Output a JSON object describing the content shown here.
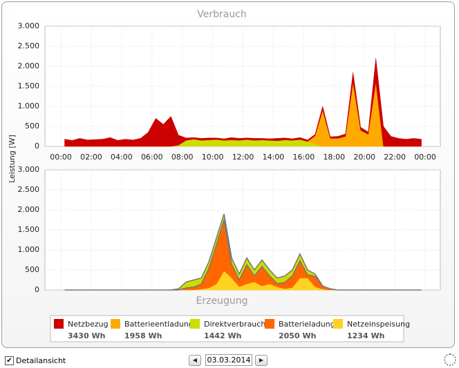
{
  "chart_data": [
    {
      "type": "area",
      "title": "Verbrauch",
      "ylabel": "Leistung [W]",
      "x": [
        0.25,
        0.75,
        1.25,
        1.75,
        2.25,
        2.75,
        3.25,
        3.75,
        4.25,
        4.75,
        5.25,
        5.75,
        6.25,
        6.75,
        7.25,
        7.75,
        8.25,
        8.75,
        9.25,
        9.75,
        10.25,
        10.75,
        11.25,
        11.75,
        12.25,
        12.75,
        13.25,
        13.75,
        14.25,
        14.75,
        15.25,
        15.75,
        16.25,
        16.75,
        17.25,
        17.75,
        18.25,
        18.75,
        19.25,
        19.75,
        20.25,
        20.75,
        21.25,
        21.75,
        22.25,
        22.75,
        23.25,
        23.75
      ],
      "xlim": [
        -1.05,
        25.0
      ],
      "xticks": [
        {
          "value": 0,
          "label": "00:00"
        },
        {
          "value": 2,
          "label": "02:00"
        },
        {
          "value": 4,
          "label": "04:00"
        },
        {
          "value": 6,
          "label": "06:00"
        },
        {
          "value": 8,
          "label": "08:00"
        },
        {
          "value": 10,
          "label": "10:00"
        },
        {
          "value": 12,
          "label": "12:00"
        },
        {
          "value": 14,
          "label": "14:00"
        },
        {
          "value": 16,
          "label": "16:00"
        },
        {
          "value": 18,
          "label": "18:00"
        },
        {
          "value": 20,
          "label": "20:00"
        },
        {
          "value": 22,
          "label": "22:00"
        },
        {
          "value": 24,
          "label": "00:00"
        }
      ],
      "ylim": [
        0,
        3000
      ],
      "yticks": [
        0,
        500,
        {
          "value": 1000,
          "label": "1.000"
        },
        {
          "value": 1500,
          "label": "1.500"
        },
        {
          "value": 2000,
          "label": "2.000"
        },
        {
          "value": 2500,
          "label": "2.500"
        },
        {
          "value": 3000,
          "label": "3.000"
        }
      ],
      "grid": true,
      "stacked": true,
      "series": [
        {
          "name": "Netzbezug",
          "total": "3430 Wh",
          "color": "#cc0000",
          "values": [
            180,
            150,
            200,
            160,
            170,
            180,
            220,
            150,
            180,
            160,
            200,
            350,
            700,
            550,
            750,
            250,
            60,
            40,
            50,
            50,
            40,
            40,
            60,
            50,
            40,
            50,
            40,
            40,
            60,
            50,
            40,
            50,
            40,
            40,
            100,
            40,
            50,
            60,
            250,
            80,
            60,
            600,
            500,
            250,
            200,
            180,
            200,
            180
          ]
        },
        {
          "name": "Batterieentladung",
          "total": "1958 Wh",
          "color": "#ffaa00",
          "values": [
            0,
            0,
            0,
            0,
            0,
            0,
            0,
            0,
            0,
            0,
            0,
            0,
            0,
            0,
            0,
            0,
            0,
            0,
            0,
            0,
            0,
            0,
            0,
            0,
            0,
            0,
            0,
            0,
            0,
            0,
            0,
            0,
            0,
            200,
            900,
            200,
            200,
            250,
            1600,
            400,
            300,
            1600,
            0,
            0,
            0,
            0,
            0,
            0
          ]
        },
        {
          "name": "Direktverbrauch",
          "total": "1442 Wh",
          "color": "#ccdd00",
          "values": [
            0,
            0,
            0,
            0,
            0,
            0,
            0,
            0,
            0,
            0,
            0,
            0,
            0,
            0,
            0,
            30,
            150,
            180,
            150,
            160,
            170,
            150,
            160,
            150,
            170,
            150,
            160,
            150,
            140,
            160,
            150,
            170,
            120,
            60,
            0,
            0,
            0,
            0,
            0,
            0,
            0,
            0,
            0,
            0,
            0,
            0,
            0,
            0
          ]
        }
      ]
    },
    {
      "type": "area",
      "title": "Erzeugung",
      "ylim": [
        0,
        3000
      ],
      "yticks": [
        0,
        500,
        {
          "value": 1000,
          "label": "1.000"
        },
        {
          "value": 1500,
          "label": "1.500"
        },
        {
          "value": 2000,
          "label": "2.000"
        },
        {
          "value": 2500,
          "label": "2.500"
        },
        {
          "value": 3000,
          "label": "3.000"
        }
      ],
      "grid": true,
      "stacked": true,
      "series": [
        {
          "name": "Batterieladung",
          "total": "2050 Wh",
          "color": "#ff6600",
          "values": [
            0,
            0,
            0,
            0,
            0,
            0,
            0,
            0,
            0,
            0,
            0,
            0,
            0,
            0,
            0,
            0,
            50,
            65,
            130,
            490,
            980,
            1270,
            340,
            170,
            480,
            150,
            490,
            200,
            80,
            160,
            290,
            430,
            80,
            260,
            80,
            30,
            0,
            0,
            0,
            0,
            0,
            0,
            0,
            0,
            0,
            0,
            0,
            0
          ]
        },
        {
          "name": "Netzeinspeisung",
          "total": "1234 Wh",
          "color": "#ffd21f",
          "values": [
            0,
            0,
            0,
            0,
            0,
            0,
            0,
            0,
            0,
            0,
            0,
            0,
            0,
            0,
            0,
            0,
            0,
            5,
            20,
            50,
            150,
            480,
            300,
            80,
            150,
            200,
            100,
            150,
            80,
            30,
            60,
            300,
            300,
            80,
            20,
            0,
            0,
            0,
            0,
            0,
            0,
            0,
            0,
            0,
            0,
            0,
            0,
            0
          ]
        }
      ]
    }
  ],
  "controls": {
    "detail_label": "Detailansicht",
    "date": "03.03.2014"
  }
}
